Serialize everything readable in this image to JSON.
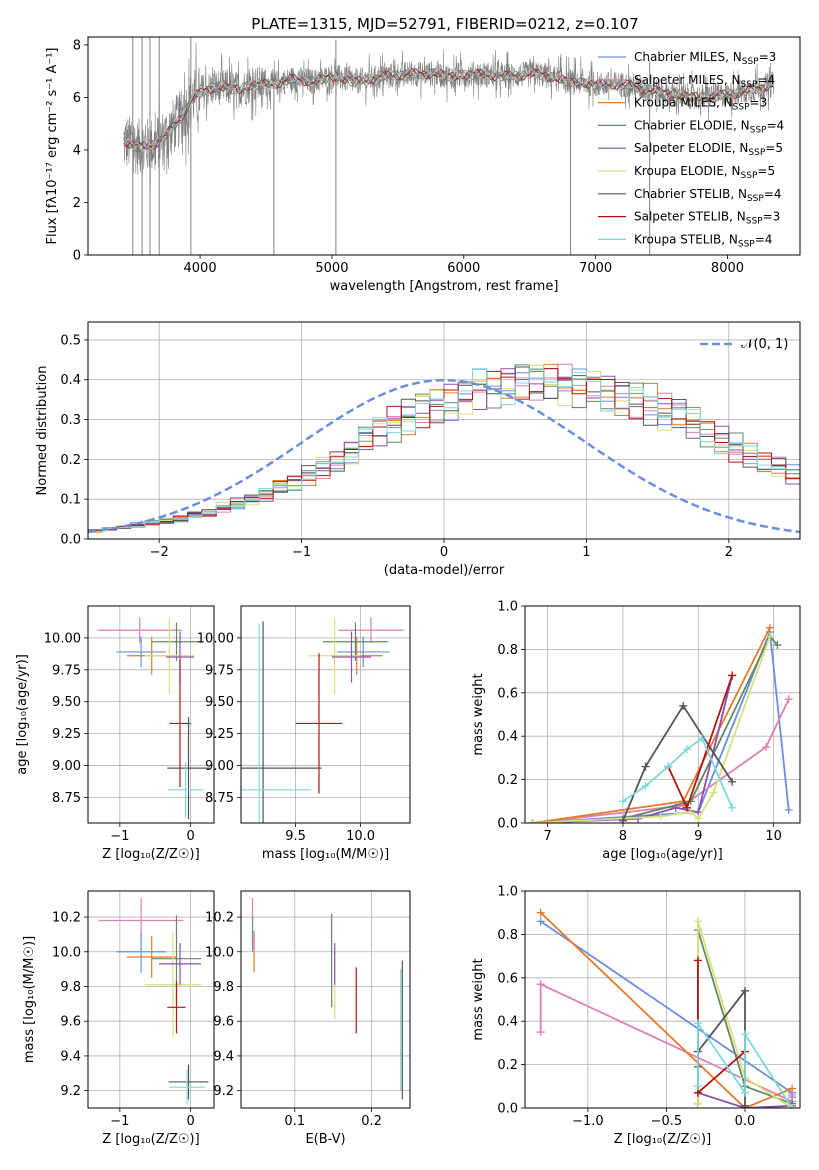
{
  "figure_title": "PLATE=1315, MJD=52791, FIBERID=0212, z=0.107",
  "colors": {
    "Chabrier MILES": "#6a8fdc",
    "Salpeter MILES": "#e07fb4",
    "Kroupa MILES": "#e57a2a",
    "Chabrier ELODIE": "#5f8a63",
    "Salpeter ELODIE": "#8a4fb5",
    "Kroupa ELODIE": "#d8e07a",
    "Chabrier STELIB": "#555555",
    "Salpeter STELIB": "#b01414",
    "Kroupa STELIB": "#7dd8de",
    "data": "#808080"
  },
  "chart_data": [
    {
      "id": "spectrum",
      "type": "line",
      "title": "PLATE=1315, MJD=52791, FIBERID=0212, z=0.107",
      "xlabel": "wavelength [Angstrom, rest frame]",
      "ylabel": "Flux [fλ10⁻¹⁷ erg cm⁻² s⁻¹ A⁻¹]",
      "xlim": [
        3150,
        8550
      ],
      "ylim": [
        0,
        8.3
      ],
      "xticks": [
        4000,
        5000,
        6000,
        7000,
        8000
      ],
      "yticks": [
        0,
        2,
        4,
        6,
        8
      ],
      "grid": false,
      "legend_position": "right",
      "legend": [
        {
          "label": "Chabrier MILES, N",
          "sub": "SSP",
          "suffix": "=3"
        },
        {
          "label": "Salpeter MILES, N",
          "sub": "SSP",
          "suffix": "=4"
        },
        {
          "label": "Kroupa MILES, N",
          "sub": "SSP",
          "suffix": "=3"
        },
        {
          "label": "Chabrier ELODIE, N",
          "sub": "SSP",
          "suffix": "=4"
        },
        {
          "label": "Salpeter ELODIE, N",
          "sub": "SSP",
          "suffix": "=5"
        },
        {
          "label": "Kroupa ELODIE, N",
          "sub": "SSP",
          "suffix": "=5"
        },
        {
          "label": "Chabrier STELIB, N",
          "sub": "SSP",
          "suffix": "=4"
        },
        {
          "label": "Salpeter STELIB, N",
          "sub": "SSP",
          "suffix": "=3"
        },
        {
          "label": "Kroupa STELIB, N",
          "sub": "SSP",
          "suffix": "=4"
        }
      ],
      "continuum": [
        [
          3420,
          4.3
        ],
        [
          3550,
          4.1
        ],
        [
          3650,
          4.2
        ],
        [
          3750,
          4.6
        ],
        [
          3850,
          5.2
        ],
        [
          3950,
          6.0
        ],
        [
          4050,
          6.3
        ],
        [
          4150,
          6.4
        ],
        [
          4300,
          6.3
        ],
        [
          4400,
          6.5
        ],
        [
          4550,
          6.5
        ],
        [
          4700,
          6.7
        ],
        [
          4861,
          6.6
        ],
        [
          5000,
          6.8
        ],
        [
          5175,
          6.6
        ],
        [
          5400,
          6.8
        ],
        [
          5600,
          6.9
        ],
        [
          5800,
          6.9
        ],
        [
          5893,
          6.8
        ],
        [
          6100,
          6.9
        ],
        [
          6300,
          6.8
        ],
        [
          6563,
          6.9
        ],
        [
          6800,
          6.6
        ],
        [
          7000,
          6.5
        ],
        [
          7200,
          6.5
        ],
        [
          7400,
          6.3
        ],
        [
          7600,
          6.1
        ],
        [
          7800,
          6.0
        ],
        [
          8000,
          6.1
        ],
        [
          8200,
          6.3
        ],
        [
          8350,
          6.5
        ]
      ],
      "noise_sigma": 0.5,
      "spikes": [
        [
          3490,
          0,
          8.3
        ],
        [
          3560,
          0,
          8.3
        ],
        [
          3620,
          0,
          8.3
        ],
        [
          3690,
          0,
          8.3
        ],
        [
          3930,
          0,
          8.3
        ],
        [
          4560,
          0,
          6.4
        ],
        [
          5030,
          0,
          8.2
        ],
        [
          6810,
          0,
          7.0
        ],
        [
          7410,
          0,
          7.4
        ]
      ]
    },
    {
      "id": "residuals",
      "type": "bar",
      "xlabel": "(data-model)/error",
      "ylabel": "Normed distribution",
      "xlim": [
        -2.5,
        2.5
      ],
      "ylim": [
        0,
        0.545
      ],
      "xticks": [
        -2,
        -1,
        0,
        1,
        2
      ],
      "yticks": [
        0.0,
        0.1,
        0.2,
        0.3,
        0.4,
        0.5
      ],
      "grid": true,
      "legend_position": "top-right",
      "legend": [
        {
          "label": "𝒩(0, 1)"
        }
      ],
      "bin_width": 0.1,
      "bin_start": -2.5,
      "base_values": [
        0.02,
        0.025,
        0.03,
        0.035,
        0.04,
        0.045,
        0.05,
        0.06,
        0.065,
        0.08,
        0.09,
        0.1,
        0.11,
        0.13,
        0.14,
        0.16,
        0.18,
        0.2,
        0.22,
        0.25,
        0.27,
        0.29,
        0.31,
        0.33,
        0.34,
        0.35,
        0.36,
        0.38,
        0.38,
        0.39,
        0.4,
        0.4,
        0.4,
        0.39,
        0.38,
        0.38,
        0.37,
        0.36,
        0.35,
        0.34,
        0.32,
        0.31,
        0.29,
        0.27,
        0.25,
        0.23,
        0.21,
        0.19,
        0.18,
        0.16,
        0.14,
        0.13,
        0.11,
        0.1,
        0.09,
        0.08,
        0.06,
        0.05,
        0.045,
        0.04,
        0.035,
        0.03,
        0.025,
        0.02,
        0.02,
        0.018,
        0.015,
        0.012,
        0.01,
        0.01
      ],
      "gaussian": {
        "mean": 0,
        "sigma": 1
      }
    },
    {
      "id": "age_vs_Z",
      "type": "scatter",
      "xlabel": "Z [log₁₀(Z/Z☉)]",
      "ylabel": "age  [log₁₀(age/yr)]",
      "xlim": [
        -1.45,
        0.33
      ],
      "ylim": [
        8.55,
        10.25
      ],
      "xticks": [
        -1,
        0
      ],
      "yticks": [
        8.75,
        9.0,
        9.25,
        9.5,
        9.75,
        10.0
      ],
      "grid": true,
      "points": [
        {
          "model": "Salpeter MILES",
          "x": -0.72,
          "y": 10.06,
          "xerr": 0.6,
          "yerr": 0.1
        },
        {
          "model": "Chabrier MILES",
          "x": -0.7,
          "y": 9.89,
          "xerr": 0.35,
          "yerr": 0.12
        },
        {
          "model": "Kroupa MILES",
          "x": -0.55,
          "y": 9.86,
          "xerr": 0.35,
          "yerr": 0.15
        },
        {
          "model": "Chabrier ELODIE",
          "x": -0.2,
          "y": 9.97,
          "xerr": 0.35,
          "yerr": 0.15
        },
        {
          "model": "Kroupa ELODIE",
          "x": -0.3,
          "y": 9.86,
          "xerr": 0.35,
          "yerr": 0.3
        },
        {
          "model": "Salpeter ELODIE",
          "x": -0.15,
          "y": 9.85,
          "xerr": 0.2,
          "yerr": 0.2
        },
        {
          "model": "Salpeter STELIB",
          "x": -0.15,
          "y": 9.33,
          "xerr": 0.15,
          "yerr": 0.5
        },
        {
          "model": "Chabrier STELIB",
          "x": -0.03,
          "y": 8.98,
          "xerr": 0.3,
          "yerr": 0.4
        },
        {
          "model": "Kroupa STELIB",
          "x": -0.07,
          "y": 8.81,
          "xerr": 0.25,
          "yerr": 0.22
        }
      ]
    },
    {
      "id": "age_vs_mass",
      "type": "scatter",
      "xlabel": "mass [log₁₀(M/M☉)]",
      "ylabel": "",
      "xlim": [
        9.08,
        10.38
      ],
      "ylim": [
        8.55,
        10.25
      ],
      "xticks": [
        9.5,
        10.0
      ],
      "yticks": [
        8.75,
        9.0,
        9.25,
        9.5,
        9.75,
        10.0
      ],
      "grid": true,
      "points": [
        {
          "model": "Salpeter MILES",
          "x": 10.08,
          "y": 10.06,
          "xerr": 0.25,
          "yerr": 0.1
        },
        {
          "model": "Chabrier MILES",
          "x": 10.02,
          "y": 9.89,
          "xerr": 0.2,
          "yerr": 0.12
        },
        {
          "model": "Kroupa MILES",
          "x": 9.97,
          "y": 9.86,
          "xerr": 0.2,
          "yerr": 0.15
        },
        {
          "model": "Chabrier ELODIE",
          "x": 9.96,
          "y": 9.97,
          "xerr": 0.25,
          "yerr": 0.15
        },
        {
          "model": "Kroupa ELODIE",
          "x": 9.8,
          "y": 9.86,
          "xerr": 0.2,
          "yerr": 0.3
        },
        {
          "model": "Salpeter ELODIE",
          "x": 9.93,
          "y": 9.85,
          "xerr": 0.15,
          "yerr": 0.2
        },
        {
          "model": "Salpeter STELIB",
          "x": 9.68,
          "y": 9.33,
          "xerr": 0.18,
          "yerr": 0.55
        },
        {
          "model": "Chabrier STELIB",
          "x": 9.25,
          "y": 8.98,
          "xerr": 0.45,
          "yerr": 1.15
        },
        {
          "model": "Kroupa STELIB",
          "x": 9.22,
          "y": 8.81,
          "xerr": 0.4,
          "yerr": 1.3
        }
      ]
    },
    {
      "id": "weight_vs_age",
      "type": "line",
      "xlabel": "age  [log₁₀(age/yr)]",
      "ylabel": "mass weight",
      "xlim": [
        6.7,
        10.35
      ],
      "ylim": [
        0,
        1.0
      ],
      "xticks": [
        7,
        8,
        9,
        10
      ],
      "yticks": [
        0.0,
        0.2,
        0.4,
        0.6,
        0.8,
        1.0
      ],
      "grid": true,
      "series": [
        {
          "model": "Chabrier MILES",
          "x": [
            6.8,
            9.0,
            9.95,
            10.2
          ],
          "y": [
            0.0,
            0.05,
            0.88,
            0.06
          ]
        },
        {
          "model": "Salpeter MILES",
          "x": [
            6.8,
            8.8,
            9.9,
            10.2
          ],
          "y": [
            0.0,
            0.08,
            0.35,
            0.57
          ]
        },
        {
          "model": "Kroupa MILES",
          "x": [
            6.8,
            8.8,
            9.95
          ],
          "y": [
            0.0,
            0.1,
            0.9
          ]
        },
        {
          "model": "Chabrier ELODIE",
          "x": [
            6.8,
            8.0,
            8.9,
            9.95,
            10.05
          ],
          "y": [
            0.0,
            0.02,
            0.1,
            0.86,
            0.82
          ]
        },
        {
          "model": "Salpeter ELODIE",
          "x": [
            6.8,
            8.2,
            8.7,
            9.0,
            9.45
          ],
          "y": [
            0.0,
            0.02,
            0.07,
            0.05,
            0.68
          ]
        },
        {
          "model": "Kroupa ELODIE",
          "x": [
            6.8,
            8.5,
            8.9,
            9.0,
            9.2,
            9.95
          ],
          "y": [
            0.0,
            0.03,
            0.05,
            0.02,
            0.14,
            0.86
          ]
        },
        {
          "model": "Chabrier STELIB",
          "x": [
            8.0,
            8.3,
            8.8,
            9.45
          ],
          "y": [
            0.01,
            0.26,
            0.54,
            0.19
          ]
        },
        {
          "model": "Salpeter STELIB",
          "x": [
            8.6,
            8.85,
            9.45
          ],
          "y": [
            0.26,
            0.07,
            0.68
          ]
        },
        {
          "model": "Kroupa STELIB",
          "x": [
            8.0,
            8.3,
            8.6,
            8.85,
            9.05,
            9.45
          ],
          "y": [
            0.1,
            0.17,
            0.26,
            0.34,
            0.39,
            0.07
          ]
        }
      ]
    },
    {
      "id": "mass_vs_Z",
      "type": "scatter",
      "xlabel": "Z [log₁₀(Z/Z☉)]",
      "ylabel": "mass [log₁₀(M/M☉)]",
      "xlim": [
        -1.45,
        0.33
      ],
      "ylim": [
        9.1,
        10.35
      ],
      "xticks": [
        -1,
        0
      ],
      "yticks": [
        9.2,
        9.4,
        9.6,
        9.8,
        10.0,
        10.2
      ],
      "grid": true,
      "points": [
        {
          "model": "Salpeter MILES",
          "x": -0.7,
          "y": 10.18,
          "xerr": 0.6,
          "yerr": 0.13
        },
        {
          "model": "Chabrier MILES",
          "x": -0.7,
          "y": 10.0,
          "xerr": 0.35,
          "yerr": 0.12
        },
        {
          "model": "Kroupa MILES",
          "x": -0.55,
          "y": 9.97,
          "xerr": 0.35,
          "yerr": 0.12
        },
        {
          "model": "Chabrier ELODIE",
          "x": -0.2,
          "y": 9.96,
          "xerr": 0.35,
          "yerr": 0.25
        },
        {
          "model": "Kroupa ELODIE",
          "x": -0.25,
          "y": 9.81,
          "xerr": 0.4,
          "yerr": 0.3
        },
        {
          "model": "Salpeter ELODIE",
          "x": -0.15,
          "y": 9.93,
          "xerr": 0.3,
          "yerr": 0.12
        },
        {
          "model": "Salpeter STELIB",
          "x": -0.2,
          "y": 9.68,
          "xerr": 0.13,
          "yerr": 0.15
        },
        {
          "model": "Chabrier STELIB",
          "x": -0.03,
          "y": 9.25,
          "xerr": 0.28,
          "yerr": 0.1
        },
        {
          "model": "Kroupa STELIB",
          "x": -0.05,
          "y": 9.22,
          "xerr": 0.25,
          "yerr": 0.1
        }
      ]
    },
    {
      "id": "mass_vs_ebv",
      "type": "scatter",
      "xlabel": "E(B-V)",
      "ylabel": "",
      "xlim": [
        0.03,
        0.25
      ],
      "ylim": [
        9.1,
        10.35
      ],
      "xticks": [
        0.1,
        0.2
      ],
      "yticks": [
        9.2,
        9.4,
        9.6,
        9.8,
        10.0,
        10.2
      ],
      "grid": true,
      "points": [
        {
          "model": "Salpeter MILES",
          "x": 0.045,
          "y": 10.18,
          "yerr": 0.13
        },
        {
          "model": "Chabrier MILES",
          "x": 0.045,
          "y": 10.1,
          "yerr": 0.1
        },
        {
          "model": "Kroupa MILES",
          "x": 0.047,
          "y": 10.0,
          "yerr": 0.12
        },
        {
          "model": "Chabrier ELODIE",
          "x": 0.148,
          "y": 9.95,
          "yerr": 0.27
        },
        {
          "model": "Kroupa ELODIE",
          "x": 0.152,
          "y": 9.81,
          "yerr": 0.2
        },
        {
          "model": "Salpeter ELODIE",
          "x": 0.152,
          "y": 9.93,
          "yerr": 0.12
        },
        {
          "model": "Salpeter STELIB",
          "x": 0.18,
          "y": 9.72,
          "yerr": 0.19
        },
        {
          "model": "Chabrier STELIB",
          "x": 0.24,
          "y": 9.55,
          "yerr": 0.4
        },
        {
          "model": "Kroupa STELIB",
          "x": 0.238,
          "y": 9.55,
          "yerr": 0.35
        }
      ]
    },
    {
      "id": "weight_vs_Z",
      "type": "line",
      "xlabel": "Z [log₁₀(Z/Z☉)]",
      "ylabel": "mass weight",
      "xlim": [
        -1.4,
        0.35
      ],
      "ylim": [
        0,
        1.0
      ],
      "xticks": [
        -1.0,
        -0.5,
        0.0
      ],
      "yticks": [
        0.0,
        0.2,
        0.4,
        0.6,
        0.8,
        1.0
      ],
      "grid": true,
      "series": [
        {
          "model": "Chabrier MILES",
          "x": [
            -1.3,
            0.3,
            0.3
          ],
          "y": [
            0.86,
            0.07,
            0.05
          ]
        },
        {
          "model": "Salpeter MILES",
          "x": [
            -1.3,
            -1.3,
            -1.3,
            0.3,
            0.3
          ],
          "y": [
            0.35,
            0.57,
            0.57,
            0.03,
            0.06
          ]
        },
        {
          "model": "Kroupa MILES",
          "x": [
            -1.3,
            0.0,
            0.3
          ],
          "y": [
            0.9,
            0.0,
            0.09
          ]
        },
        {
          "model": "Chabrier ELODIE",
          "x": [
            -0.3,
            -0.3,
            0.0,
            0.3
          ],
          "y": [
            0.02,
            0.82,
            0.1,
            0.02
          ]
        },
        {
          "model": "Salpeter ELODIE",
          "x": [
            -0.3,
            -0.3,
            0.0,
            0.3
          ],
          "y": [
            0.02,
            0.07,
            0.0,
            0.01
          ]
        },
        {
          "model": "Kroupa ELODIE",
          "x": [
            -0.3,
            -0.3,
            0.0,
            0.3
          ],
          "y": [
            0.02,
            0.86,
            0.14,
            0.0
          ]
        },
        {
          "model": "Chabrier STELIB",
          "x": [
            -0.3,
            -0.3,
            0.0,
            0.0
          ],
          "y": [
            0.19,
            0.26,
            0.54,
            0.01
          ]
        },
        {
          "model": "Salpeter STELIB",
          "x": [
            -0.3,
            -0.3,
            0.0
          ],
          "y": [
            0.68,
            0.07,
            0.26
          ]
        },
        {
          "model": "Kroupa STELIB",
          "x": [
            -0.3,
            -0.3,
            0.0,
            0.0,
            0.3
          ],
          "y": [
            0.1,
            0.39,
            0.07,
            0.34,
            0.0
          ]
        }
      ]
    }
  ]
}
